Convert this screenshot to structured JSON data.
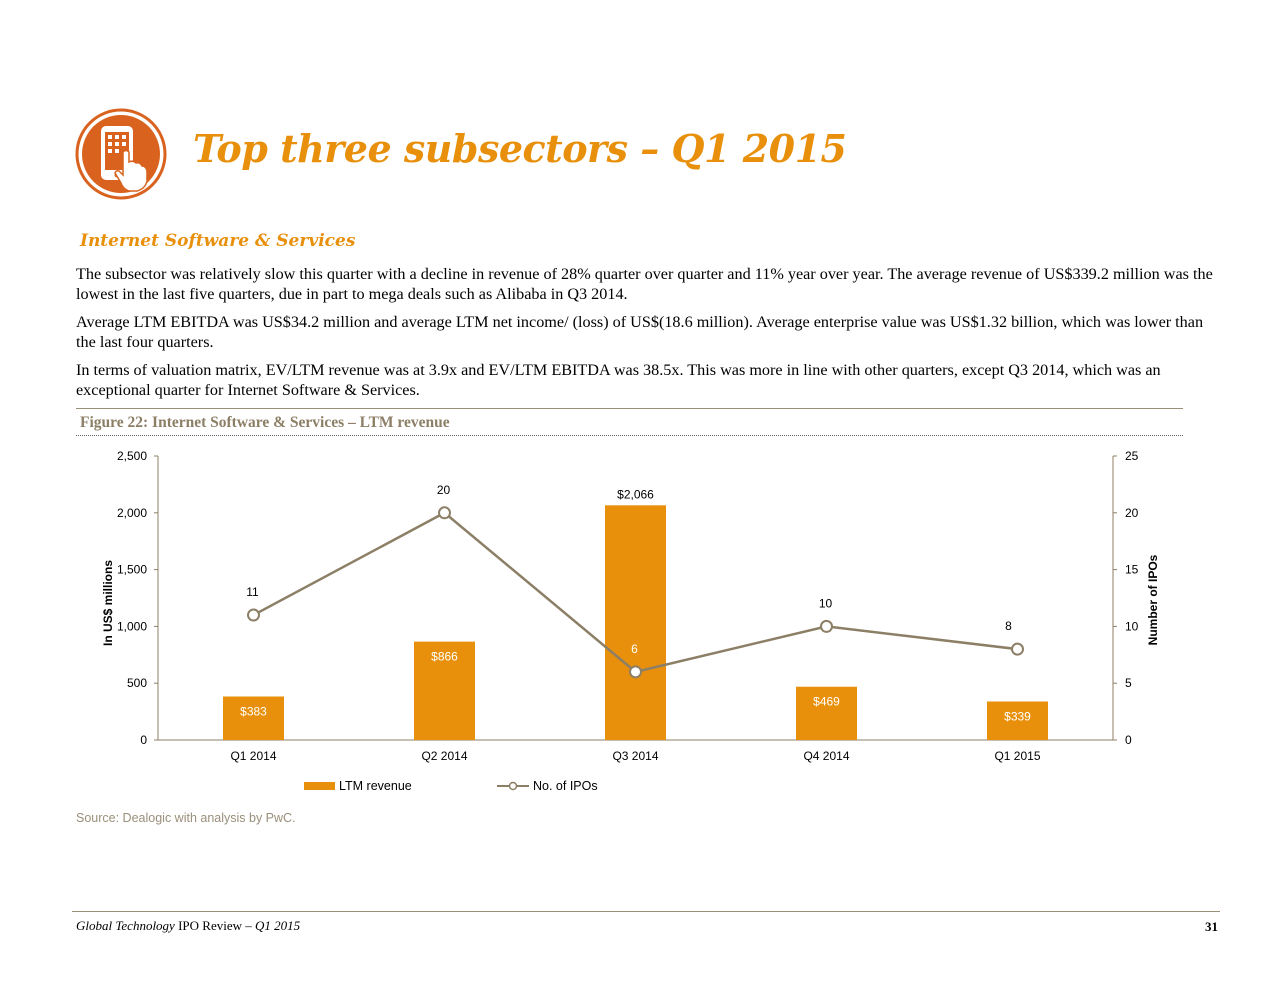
{
  "header": {
    "title": "Top three subsectors – Q1 2015",
    "logo_icon": "mobile-touch-icon",
    "accent_color": "#E8900B"
  },
  "section": {
    "heading": "Internet Software & Services",
    "paragraphs": [
      "The subsector was relatively slow this quarter with a decline in revenue of 28% quarter over quarter and 11% year over year. The average revenue of US$339.2 million was the lowest in the last five quarters, due in part to mega deals such as Alibaba in Q3 2014.",
      "Average LTM EBITDA was US$34.2 million and average LTM net income/ (loss) of US$(18.6 million). Average enterprise value was US$1.32 billion, which was lower than the last four quarters.",
      "In terms of valuation matrix, EV/LTM revenue was at 3.9x and EV/LTM EBITDA was 38.5x. This was more in line with other quarters, except Q3 2014, which was an exceptional quarter for Internet Software & Services."
    ]
  },
  "figure": {
    "caption": "Figure 22: Internet Software & Services – LTM revenue",
    "source": "Source: Dealogic with analysis by PwC."
  },
  "chart_data": {
    "type": "bar",
    "categories": [
      "Q1 2014",
      "Q2 2014",
      "Q3 2014",
      "Q4 2014",
      "Q1 2015"
    ],
    "series": [
      {
        "name": "LTM revenue",
        "type": "bar",
        "axis": "left",
        "color": "#E8900B",
        "values": [
          383,
          866,
          2066,
          469,
          339
        ],
        "labels": [
          "$383",
          "$866",
          "$2,066",
          "$469",
          "$339"
        ]
      },
      {
        "name": "No. of IPOs",
        "type": "line",
        "axis": "right",
        "color": "#8C7F66",
        "values": [
          11,
          20,
          6,
          10,
          8
        ],
        "labels": [
          "11",
          "20",
          "6",
          "10",
          "8"
        ]
      }
    ],
    "ylabel": "In US$ millions",
    "y2label": "Number of IPOs",
    "ylim": [
      0,
      2500
    ],
    "y2lim": [
      0,
      25
    ],
    "yticks": [
      "0",
      "500",
      "1,000",
      "1,500",
      "2,000",
      "2,500"
    ],
    "y2ticks": [
      "0",
      "5",
      "10",
      "15",
      "20",
      "25"
    ],
    "grid": false,
    "legend_position": "bottom-left"
  },
  "footer": {
    "publication": "Global Technology",
    "report": " IPO Review – ",
    "period": "Q1 2015",
    "page": "31"
  }
}
